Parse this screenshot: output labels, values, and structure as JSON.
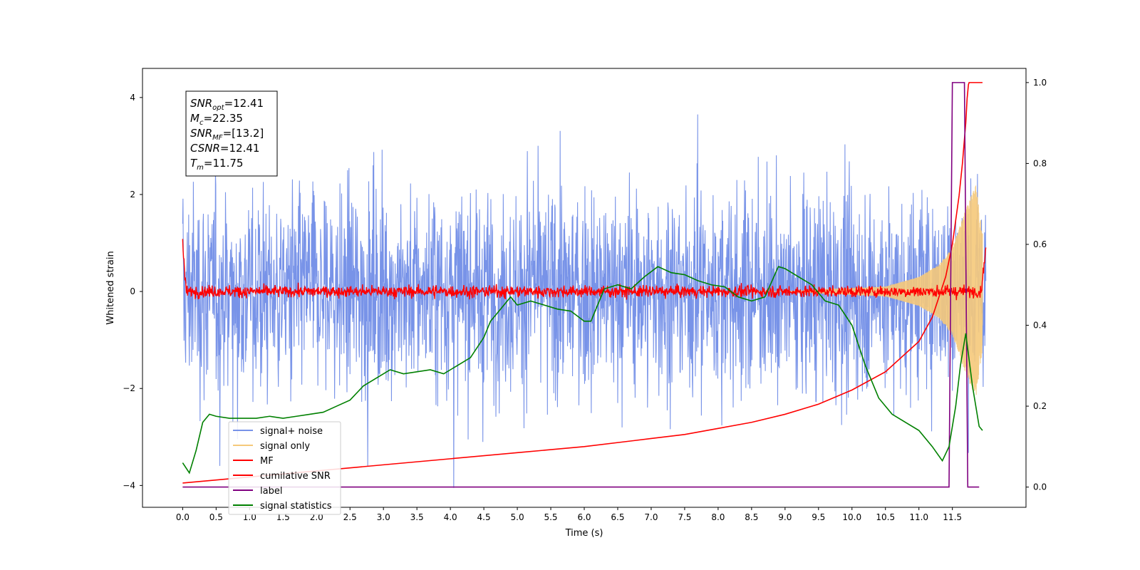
{
  "chart_data": {
    "type": "line",
    "xlabel": "Time (s)",
    "ylabel": "Whitened strain",
    "xlim": [
      -0.6,
      12.6
    ],
    "ylim": [
      -4.45,
      4.6
    ],
    "y2lim": [
      -0.05,
      1.035
    ],
    "x_ticks": [
      0.0,
      0.5,
      1.0,
      1.5,
      2.0,
      2.5,
      3.0,
      3.5,
      4.0,
      4.5,
      5.0,
      5.5,
      6.0,
      6.5,
      7.0,
      7.5,
      8.0,
      8.5,
      9.0,
      9.5,
      10.0,
      10.5,
      11.0,
      11.5
    ],
    "x_tick_labels": [
      "0.0",
      "0.5",
      "1.0",
      "1.5",
      "2.0",
      "2.5",
      "3.0",
      "3.5",
      "4.0",
      "4.5",
      "5.0",
      "5.5",
      "6.0",
      "6.5",
      "7.0",
      "7.5",
      "8.0",
      "8.5",
      "9.0",
      "9.5",
      "10.0",
      "10.5",
      "11.0",
      "11.5"
    ],
    "y_ticks": [
      -4,
      -2,
      0,
      2,
      4
    ],
    "y_tick_labels": [
      "−4",
      "−2",
      "0",
      "2",
      "4"
    ],
    "y2_ticks": [
      0.0,
      0.2,
      0.4,
      0.6,
      0.8,
      1.0
    ],
    "y2_tick_labels": [
      "0.0",
      "0.2",
      "0.4",
      "0.6",
      "0.8",
      "1.0"
    ],
    "legend_position": "lower-left",
    "annotation": {
      "lines": [
        {
          "sym": "SNR",
          "sub": "opt",
          "val": "=12.41"
        },
        {
          "sym": "M",
          "sub": "c",
          "val": "=22.35"
        },
        {
          "sym": "SNR",
          "sub": "MF",
          "val": "=[13.2]"
        },
        {
          "sym": "CSNR",
          "sub": "",
          "val": "=12.41"
        },
        {
          "sym": "T",
          "sub": "m",
          "val": "=11.75"
        }
      ]
    },
    "series": [
      {
        "name": "signal+ noise",
        "color": "#7893e8",
        "axis": "left",
        "kind": "noise",
        "x_range": [
          0,
          12
        ],
        "amplitude_range": [
          -4.05,
          3.65
        ],
        "note": "dense random noise"
      },
      {
        "name": "signal only",
        "color": "#f5c97a",
        "axis": "left",
        "kind": "chirp",
        "envelope_x": [
          10.5,
          11.0,
          11.3,
          11.5,
          11.7,
          11.85,
          11.95
        ],
        "envelope_y": [
          0.1,
          0.3,
          0.55,
          0.9,
          1.7,
          2.2,
          1.2
        ]
      },
      {
        "name": "MF",
        "color": "#ff0000",
        "axis": "left",
        "kind": "mf",
        "x_range": [
          0,
          12
        ],
        "start_value": 1.0,
        "end_value": 0.9
      },
      {
        "name": "cumilative SNR",
        "color": "#ff0000",
        "axis": "right",
        "x": [
          0.0,
          1.0,
          2.0,
          3.0,
          4.0,
          5.0,
          6.0,
          7.0,
          7.5,
          8.0,
          8.5,
          9.0,
          9.5,
          10.0,
          10.5,
          11.0,
          11.2,
          11.4,
          11.5,
          11.6,
          11.65,
          11.7,
          11.72,
          11.74,
          11.75,
          11.95
        ],
        "y": [
          0.01,
          0.025,
          0.04,
          0.055,
          0.07,
          0.085,
          0.1,
          0.12,
          0.13,
          0.145,
          0.16,
          0.18,
          0.205,
          0.24,
          0.285,
          0.36,
          0.42,
          0.52,
          0.6,
          0.72,
          0.8,
          0.9,
          0.96,
          0.995,
          1.0,
          1.0
        ]
      },
      {
        "name": "label",
        "color": "#800080",
        "axis": "right",
        "x": [
          0.0,
          11.45,
          11.5,
          11.68,
          11.73,
          11.9
        ],
        "y": [
          0.0,
          0.0,
          1.0,
          1.0,
          0.0,
          0.0
        ]
      },
      {
        "name": "signal statistics",
        "color": "#008000",
        "axis": "right",
        "x": [
          0.0,
          0.1,
          0.2,
          0.3,
          0.4,
          0.5,
          0.7,
          0.9,
          1.1,
          1.3,
          1.5,
          1.7,
          1.9,
          2.1,
          2.3,
          2.5,
          2.7,
          2.9,
          3.1,
          3.3,
          3.5,
          3.7,
          3.9,
          4.1,
          4.3,
          4.5,
          4.6,
          4.7,
          4.9,
          5.0,
          5.2,
          5.4,
          5.6,
          5.8,
          6.0,
          6.1,
          6.3,
          6.5,
          6.7,
          6.9,
          7.1,
          7.3,
          7.5,
          7.7,
          7.9,
          8.1,
          8.3,
          8.5,
          8.7,
          8.9,
          9.0,
          9.2,
          9.4,
          9.6,
          9.8,
          10.0,
          10.2,
          10.4,
          10.6,
          10.8,
          11.0,
          11.2,
          11.35,
          11.45,
          11.55,
          11.62,
          11.7,
          11.8,
          11.9,
          11.95
        ],
        "y": [
          0.06,
          0.035,
          0.09,
          0.16,
          0.18,
          0.175,
          0.17,
          0.17,
          0.17,
          0.175,
          0.17,
          0.175,
          0.18,
          0.185,
          0.2,
          0.215,
          0.25,
          0.27,
          0.29,
          0.28,
          0.285,
          0.29,
          0.28,
          0.3,
          0.32,
          0.37,
          0.41,
          0.43,
          0.47,
          0.45,
          0.46,
          0.45,
          0.44,
          0.435,
          0.41,
          0.41,
          0.49,
          0.5,
          0.49,
          0.52,
          0.545,
          0.53,
          0.525,
          0.51,
          0.5,
          0.495,
          0.47,
          0.46,
          0.47,
          0.545,
          0.54,
          0.52,
          0.5,
          0.46,
          0.45,
          0.4,
          0.3,
          0.22,
          0.18,
          0.16,
          0.14,
          0.1,
          0.065,
          0.1,
          0.2,
          0.3,
          0.38,
          0.25,
          0.15,
          0.14
        ]
      }
    ]
  }
}
